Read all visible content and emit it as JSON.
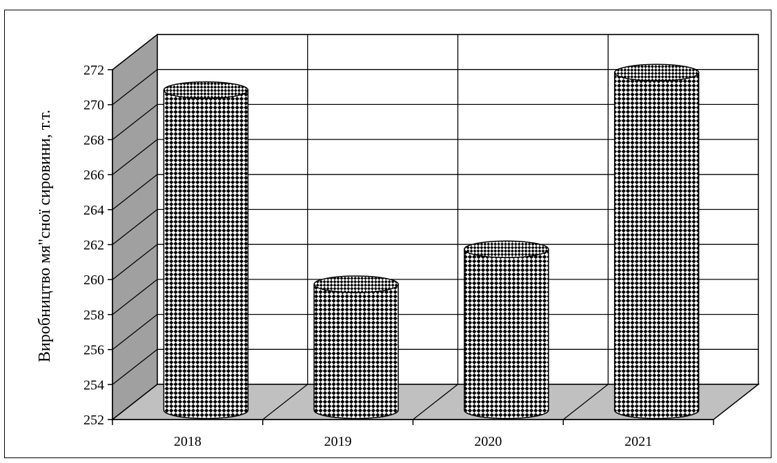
{
  "chart_data": {
    "type": "bar",
    "title": "",
    "xlabel": "",
    "ylabel": "Виробництво мя\"сної сировини, т.т.",
    "categories": [
      "2018",
      "2019",
      "2020",
      "2021"
    ],
    "values": [
      270.3,
      259.2,
      261.2,
      271.3
    ],
    "ylim": [
      252,
      272
    ],
    "yticks": [
      "252",
      "254",
      "256",
      "258",
      "260",
      "262",
      "264",
      "266",
      "268",
      "270",
      "272"
    ],
    "grid": true,
    "bar_style": "3d-cylinder-checkered",
    "colors": {
      "wall": "#ffffff",
      "side_wall": "#a0a0a0",
      "floor": "#c0c0c0",
      "pattern_dark": "#000000",
      "pattern_light": "#ffffff"
    }
  }
}
